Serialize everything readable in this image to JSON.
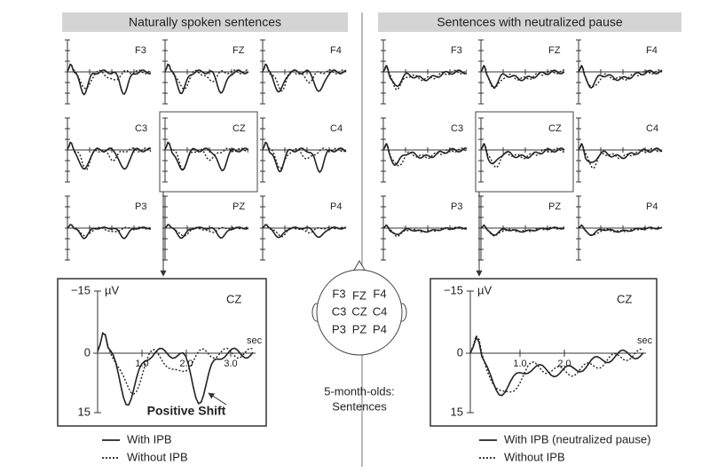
{
  "panels": [
    {
      "title": "Naturally spoken sentences",
      "electrodes": [
        "F3",
        "FZ",
        "F4",
        "C3",
        "CZ",
        "C4",
        "P3",
        "PZ",
        "P4"
      ],
      "detail": {
        "electrode": "CZ",
        "y_unit": "µV",
        "x_unit": "sec",
        "y_labels": [
          "−15",
          "0",
          "15"
        ],
        "x_labels": [
          "1.0",
          "2.0",
          "3.0"
        ],
        "annotation": "Positive Shift"
      },
      "legend": [
        "With IPB",
        "Without IPB"
      ]
    },
    {
      "title": "Sentences with neutralized pause",
      "electrodes": [
        "F3",
        "FZ",
        "F4",
        "C3",
        "CZ",
        "C4",
        "P3",
        "PZ",
        "P4"
      ],
      "detail": {
        "electrode": "CZ",
        "y_unit": "µV",
        "x_unit": "sec",
        "y_labels": [
          "−15",
          "0",
          "15"
        ],
        "x_labels": [
          "1.0",
          "2.0"
        ]
      },
      "legend": [
        "With IPB (neutralized pause)",
        "Without IPB"
      ]
    }
  ],
  "head": {
    "labels": [
      "F3",
      "FZ",
      "F4",
      "C3",
      "CZ",
      "C4",
      "P3",
      "PZ",
      "P4"
    ]
  },
  "caption": [
    "5-month-olds:",
    "Sentences"
  ]
}
